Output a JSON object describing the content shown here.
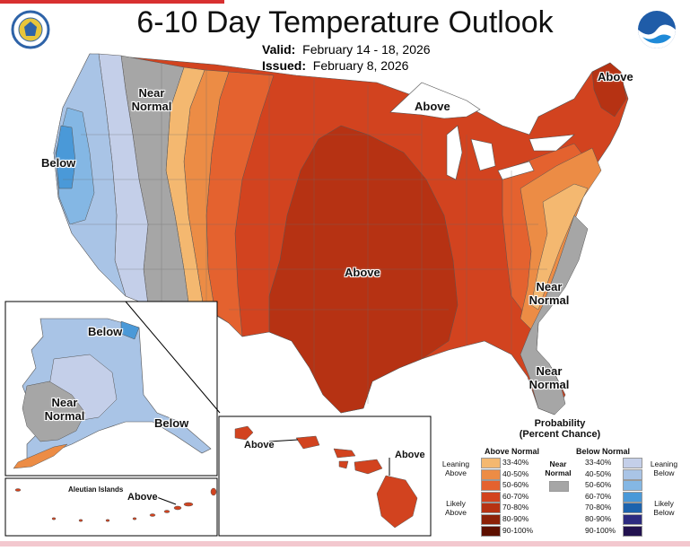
{
  "title": "6-10 Day Temperature Outlook",
  "valid_label": "Valid:",
  "valid_dates": "February 14 - 18, 2026",
  "issued_label": "Issued:",
  "issued_date": "February 8, 2026",
  "map_labels": {
    "west_near": "Near Normal",
    "west_below": "Below",
    "central_above": "Above",
    "great_lakes_above": "Above",
    "maine_above": "Above",
    "east_near": "Near Normal",
    "florida_near": "Near Normal",
    "alaska_below": "Below",
    "alaska_near": "Near Normal",
    "alaska_se_below": "Below",
    "aleutian_title": "Aleutian Islands",
    "aleutian_above": "Above",
    "hawaii_above_left": "Above",
    "hawaii_above_right": "Above"
  },
  "legend": {
    "title_line1": "Probability",
    "title_line2": "(Percent Chance)",
    "above_head": "Above Normal",
    "below_head": "Below Normal",
    "near_label": "Near Normal",
    "leaning_above": "Leaning Above",
    "likely_above": "Likely Above",
    "leaning_below": "Leaning Below",
    "likely_below": "Likely Below",
    "near_color": "#a6a6a6",
    "above": [
      {
        "range": "33-40%",
        "color": "#f4b870"
      },
      {
        "range": "40-50%",
        "color": "#ec8c45"
      },
      {
        "range": "50-60%",
        "color": "#e4622f"
      },
      {
        "range": "60-70%",
        "color": "#d2431f"
      },
      {
        "range": "70-80%",
        "color": "#b63213"
      },
      {
        "range": "80-90%",
        "color": "#8c2108"
      },
      {
        "range": "90-100%",
        "color": "#5e1000"
      }
    ],
    "below": [
      {
        "range": "33-40%",
        "color": "#c4cfe9"
      },
      {
        "range": "40-50%",
        "color": "#a9c4e6"
      },
      {
        "range": "50-60%",
        "color": "#84b7e4"
      },
      {
        "range": "60-70%",
        "color": "#4a99d8"
      },
      {
        "range": "70-80%",
        "color": "#1d63ad"
      },
      {
        "range": "80-90%",
        "color": "#2d2b80"
      },
      {
        "range": "90-100%",
        "color": "#22124f"
      }
    ]
  }
}
